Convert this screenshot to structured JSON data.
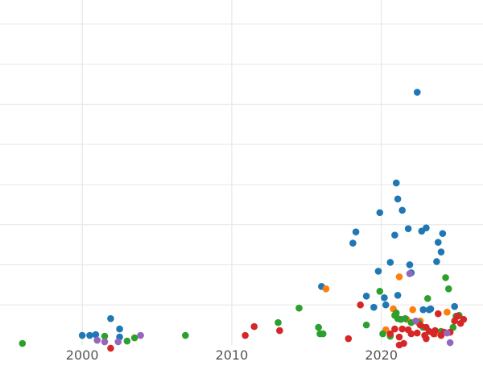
{
  "chart_data": {
    "type": "scatter",
    "title": "",
    "xlabel": "",
    "ylabel": "",
    "xlim": [
      1994.5,
      2026.8
    ],
    "ylim": [
      0,
      430
    ],
    "x_ticks": [
      2000,
      2010,
      2020
    ],
    "x_tick_labels": [
      "2000",
      "2010",
      "2020"
    ],
    "y_gridlines": [
      50,
      100,
      150,
      200,
      250,
      300,
      350,
      400
    ],
    "grid": "both",
    "legend": "none",
    "colors": {
      "blue": "#1f77b4",
      "orange": "#ff7f0e",
      "green": "#2ca02c",
      "red": "#d62728",
      "purple": "#9467bd",
      "grid": "#e6e6e6",
      "tick_label": "#555555"
    },
    "series": [
      {
        "color": "#1f77b4",
        "points": [
          [
            2000.0,
            12
          ],
          [
            2000.5,
            12
          ],
          [
            2000.9,
            13
          ],
          [
            2001.9,
            33
          ],
          [
            2002.5,
            20
          ],
          [
            2002.5,
            10
          ],
          [
            2018.1,
            127
          ],
          [
            2018.3,
            141
          ],
          [
            2019.0,
            61
          ],
          [
            2019.5,
            47
          ],
          [
            2019.8,
            92
          ],
          [
            2019.9,
            165
          ],
          [
            2020.2,
            59
          ],
          [
            2020.3,
            50
          ],
          [
            2020.6,
            103
          ],
          [
            2020.9,
            137
          ],
          [
            2021.0,
            202
          ],
          [
            2021.1,
            182
          ],
          [
            2021.1,
            62
          ],
          [
            2021.4,
            168
          ],
          [
            2021.8,
            145
          ],
          [
            2021.9,
            100
          ],
          [
            2022.4,
            315
          ],
          [
            2022.7,
            142
          ],
          [
            2022.8,
            44
          ],
          [
            2023.0,
            146
          ],
          [
            2023.2,
            44
          ],
          [
            2023.3,
            45
          ],
          [
            2023.7,
            104
          ],
          [
            2023.8,
            128
          ],
          [
            2024.0,
            116
          ],
          [
            2024.1,
            139
          ],
          [
            2024.9,
            48
          ],
          [
            2016.0,
            73
          ],
          [
            2022.0,
            90
          ]
        ]
      },
      {
        "color": "#ff7f0e",
        "points": [
          [
            2016.3,
            70
          ],
          [
            2020.3,
            19
          ],
          [
            2020.8,
            45
          ],
          [
            2021.2,
            85
          ],
          [
            2021.7,
            32
          ],
          [
            2022.1,
            44
          ],
          [
            2022.6,
            30
          ],
          [
            2024.4,
            41
          ],
          [
            2025.0,
            35
          ],
          [
            2023.6,
            14
          ]
        ]
      },
      {
        "color": "#2ca02c",
        "points": [
          [
            1996.0,
            2
          ],
          [
            2001.5,
            11
          ],
          [
            2003.0,
            5
          ],
          [
            2003.5,
            9
          ],
          [
            2006.9,
            12
          ],
          [
            2013.1,
            28
          ],
          [
            2014.5,
            46
          ],
          [
            2015.8,
            22
          ],
          [
            2015.9,
            14
          ],
          [
            2016.1,
            14
          ],
          [
            2019.0,
            25
          ],
          [
            2019.9,
            67
          ],
          [
            2020.1,
            14
          ],
          [
            2020.6,
            11
          ],
          [
            2020.9,
            37
          ],
          [
            2021.0,
            40
          ],
          [
            2021.1,
            33
          ],
          [
            2021.3,
            32
          ],
          [
            2021.6,
            33
          ],
          [
            2022.0,
            28
          ],
          [
            2022.5,
            28
          ],
          [
            2022.8,
            22
          ],
          [
            2023.1,
            58
          ],
          [
            2023.5,
            15
          ],
          [
            2024.0,
            17
          ],
          [
            2024.3,
            84
          ],
          [
            2024.5,
            70
          ],
          [
            2024.8,
            22
          ],
          [
            2025.0,
            36
          ],
          [
            2025.2,
            37
          ]
        ]
      },
      {
        "color": "#d62728",
        "points": [
          [
            2001.9,
            -4
          ],
          [
            2010.9,
            12
          ],
          [
            2011.5,
            23
          ],
          [
            2013.2,
            18
          ],
          [
            2017.8,
            8
          ],
          [
            2018.6,
            50
          ],
          [
            2020.6,
            14
          ],
          [
            2020.9,
            20
          ],
          [
            2021.2,
            10
          ],
          [
            2021.2,
            0
          ],
          [
            2021.4,
            20
          ],
          [
            2021.8,
            19
          ],
          [
            2022.0,
            14
          ],
          [
            2022.4,
            15
          ],
          [
            2022.6,
            25
          ],
          [
            2022.9,
            12
          ],
          [
            2023.0,
            22
          ],
          [
            2023.2,
            17
          ],
          [
            2023.5,
            14
          ],
          [
            2023.6,
            18
          ],
          [
            2023.8,
            39
          ],
          [
            2024.0,
            12
          ],
          [
            2024.2,
            16
          ],
          [
            2024.6,
            16
          ],
          [
            2024.9,
            30
          ],
          [
            2025.1,
            36
          ],
          [
            2025.3,
            27
          ],
          [
            2025.5,
            32
          ],
          [
            2023.0,
            8
          ],
          [
            2021.5,
            2
          ]
        ]
      },
      {
        "color": "#9467bd",
        "points": [
          [
            2001.0,
            6
          ],
          [
            2001.5,
            4
          ],
          [
            2002.4,
            4
          ],
          [
            2003.9,
            12
          ],
          [
            2021.9,
            89
          ],
          [
            2022.3,
            30
          ],
          [
            2024.4,
            15
          ],
          [
            2024.6,
            3
          ]
        ]
      }
    ]
  }
}
